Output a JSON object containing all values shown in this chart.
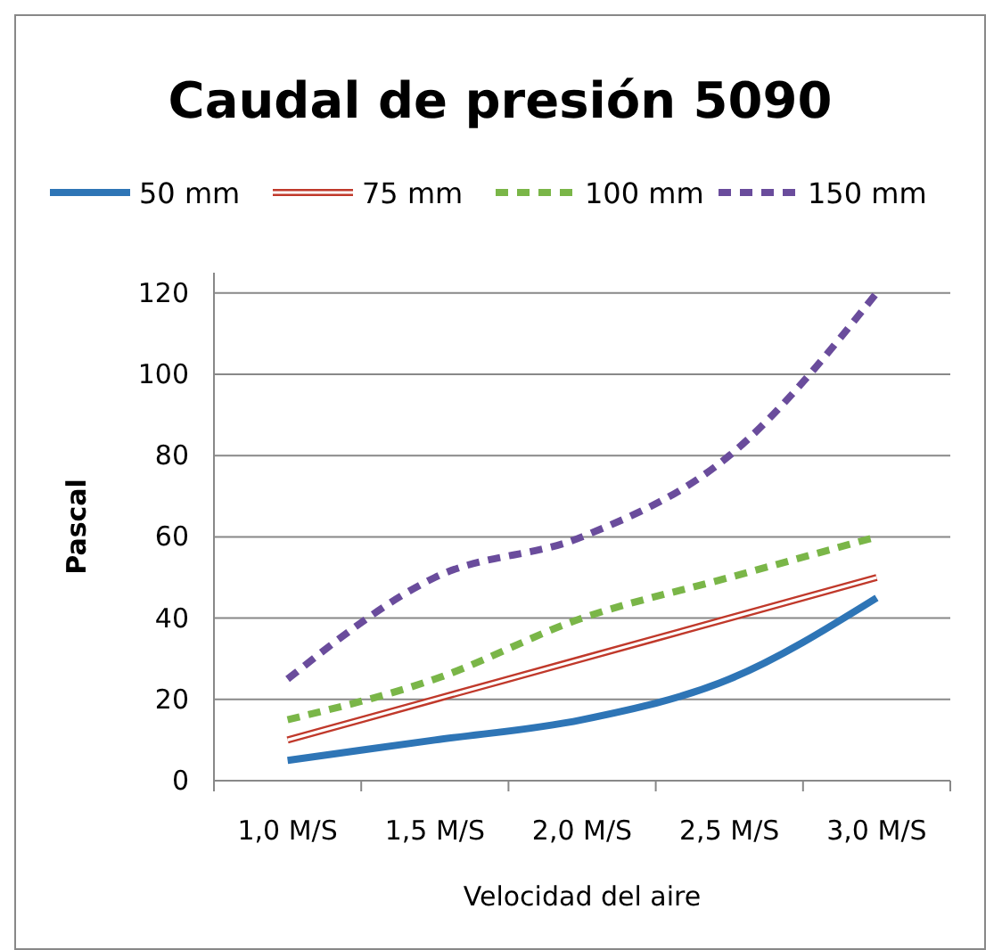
{
  "chart_data": {
    "type": "line",
    "title": "Caudal de presión 5090",
    "xlabel": "Velocidad del aire",
    "ylabel": "Pascal",
    "categories": [
      "1,0 M/S",
      "1,5 M/S",
      "2,0 M/S",
      "2,5 M/S",
      "3,0 M/S"
    ],
    "series": [
      {
        "name": "50 mm",
        "color": "#2e75b6",
        "values": [
          5,
          10,
          15,
          25,
          45
        ],
        "line_style": "solid"
      },
      {
        "name": "75 mm",
        "color": "#c0392b",
        "values": [
          10,
          20,
          30,
          40,
          50
        ],
        "line_style": "solid"
      },
      {
        "name": "100 mm",
        "color": "#7ab648",
        "values": [
          15,
          25,
          40,
          50,
          60
        ],
        "line_style": "dashed"
      },
      {
        "name": "150 mm",
        "color": "#6a4c9c",
        "values": [
          25,
          50,
          60,
          80,
          120
        ],
        "line_style": "dashed"
      }
    ],
    "ylim": [
      0,
      125
    ],
    "yticks": [
      0,
      20,
      40,
      60,
      80,
      100,
      120
    ],
    "grid": "y",
    "legend": "top",
    "marker": "none"
  }
}
